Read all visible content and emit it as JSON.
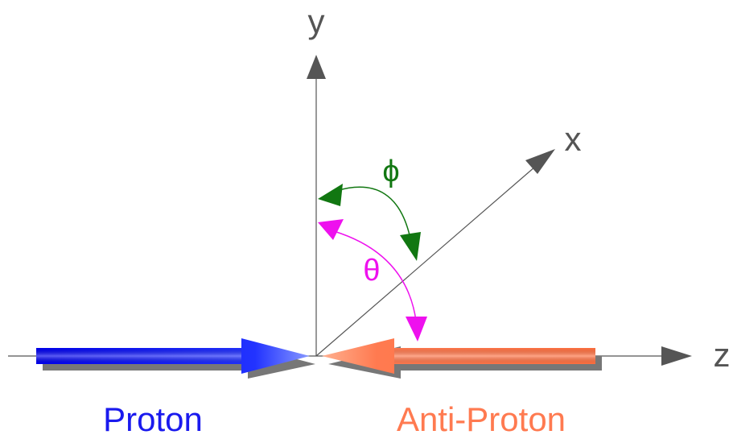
{
  "labels": {
    "y": "y",
    "x": "x",
    "z": "z",
    "phi": "ϕ",
    "theta": "θ",
    "proton": "Proton",
    "anti_proton": "Anti-Proton"
  }
}
